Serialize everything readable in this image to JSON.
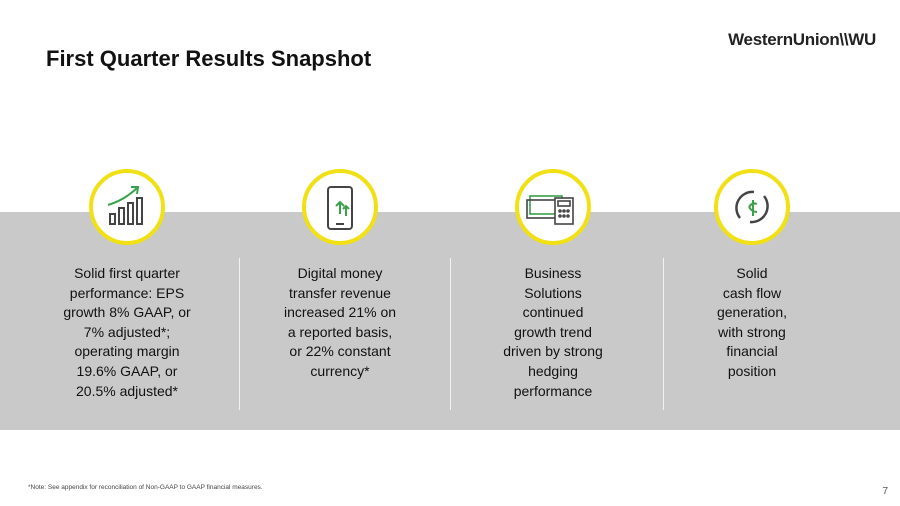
{
  "header": {
    "title": "First Quarter Results Snapshot",
    "logo": "WesternUnion\\\\WU"
  },
  "columns": [
    {
      "lines": [
        "Solid first quarter",
        "performance: EPS",
        "growth 8% GAAP, or",
        "7% adjusted*;",
        "operating margin",
        "19.6% GAAP, or",
        "20.5% adjusted*"
      ]
    },
    {
      "lines": [
        "Digital money",
        "transfer revenue",
        "increased 21% on",
        "a reported basis,",
        "or 22% constant",
        "currency*"
      ]
    },
    {
      "lines": [
        "Business",
        "Solutions",
        "continued",
        "growth trend",
        "driven by strong",
        "hedging",
        "performance"
      ]
    },
    {
      "lines": [
        "Solid",
        "cash flow",
        "generation,",
        "with strong",
        "financial",
        "position"
      ]
    }
  ],
  "footer": {
    "note": "*Note: See appendix for reconciliation of Non-GAAP to GAAP financial measures.",
    "page": "7"
  }
}
